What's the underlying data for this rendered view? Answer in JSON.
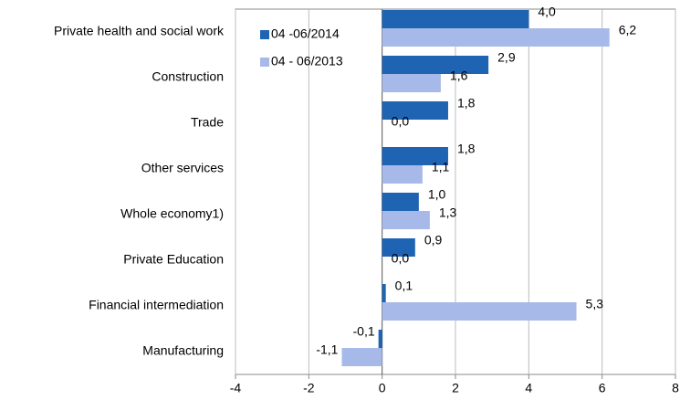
{
  "chart_data": {
    "type": "barh",
    "categories": [
      "Private health and social work",
      "Construction",
      "Trade",
      "Other services",
      "Whole economy1)",
      "Private Education",
      "Financial intermediation",
      "Manufacturing"
    ],
    "series": [
      {
        "name": "04 -06/2014",
        "color": "#1f63b3",
        "values": [
          4.0,
          2.9,
          1.8,
          1.8,
          1.0,
          0.9,
          0.1,
          -0.1
        ],
        "value_labels": [
          "4,0",
          "2,9",
          "1,8",
          "1,8",
          "1,0",
          "0,9",
          "0,1",
          "-0,1"
        ]
      },
      {
        "name": "04 - 06/2013",
        "color": "#a6b9e9",
        "values": [
          6.2,
          1.6,
          0.0,
          1.1,
          1.3,
          0.0,
          5.3,
          -1.1
        ],
        "value_labels": [
          "6,2",
          "1,6",
          "0,0",
          "1,1",
          "1,3",
          "0,0",
          "5,3",
          "-1,1"
        ]
      }
    ],
    "xlim": [
      -4,
      8
    ],
    "xticks": [
      -4,
      -2,
      0,
      2,
      4,
      6,
      8
    ],
    "grid": true,
    "legend": "top-left"
  }
}
